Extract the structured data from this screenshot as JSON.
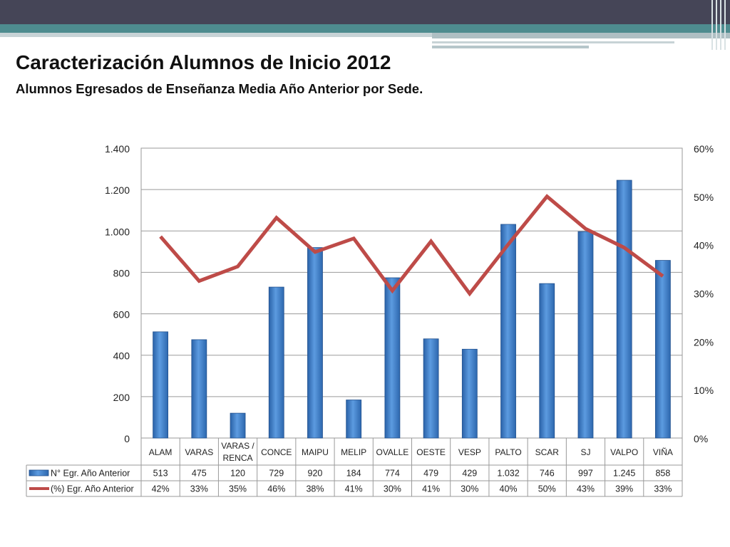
{
  "page": {
    "title": "Caracterización Alumnos de Inicio 2012",
    "subtitle": "Alumnos Egresados de Enseñanza Media Año Anterior por Sede."
  },
  "chart_data": {
    "type": "bar",
    "categories": [
      "ALAM",
      "VARAS",
      "VARAS / RENCA",
      "CONCE",
      "MAIPU",
      "MELIP",
      "OVALLE",
      "OESTE",
      "VESP",
      "PALTO",
      "SCAR",
      "SJ",
      "VALPO",
      "VIÑA"
    ],
    "series": [
      {
        "name": "N° Egr. Año Anterior",
        "type": "bar",
        "axis": "left",
        "color": "#3a7cc8",
        "values": [
          513,
          475,
          120,
          729,
          920,
          184,
          774,
          479,
          429,
          1032,
          746,
          997,
          1245,
          858
        ],
        "labels": [
          "513",
          "475",
          "120",
          "729",
          "920",
          "184",
          "774",
          "479",
          "429",
          "1.032",
          "746",
          "997",
          "1.245",
          "858"
        ]
      },
      {
        "name": "(%) Egr. Año Anterior",
        "type": "line",
        "axis": "right",
        "color": "#be4b48",
        "values": [
          41.7,
          32.5,
          35.5,
          45.6,
          38.5,
          41.3,
          30.5,
          40.7,
          29.9,
          40.1,
          50.0,
          43.3,
          39.4,
          33.5
        ],
        "labels": [
          "42%",
          "33%",
          "35%",
          "46%",
          "38%",
          "41%",
          "30%",
          "41%",
          "30%",
          "40%",
          "50%",
          "43%",
          "39%",
          "33%"
        ]
      }
    ],
    "y_left": {
      "ylim": [
        0,
        1400
      ],
      "ticks": [
        0,
        200,
        400,
        600,
        800,
        1000,
        1200,
        1400
      ],
      "tick_labels": [
        "0",
        "200",
        "400",
        "600",
        "800",
        "1.000",
        "1.200",
        "1.400"
      ]
    },
    "y_right": {
      "ylim": [
        0,
        60
      ],
      "ticks": [
        0,
        10,
        20,
        30,
        40,
        50,
        60
      ],
      "tick_labels": [
        "0%",
        "10%",
        "20%",
        "30%",
        "40%",
        "50%",
        "60%"
      ]
    },
    "grid": true,
    "legend": "data-table-below"
  }
}
